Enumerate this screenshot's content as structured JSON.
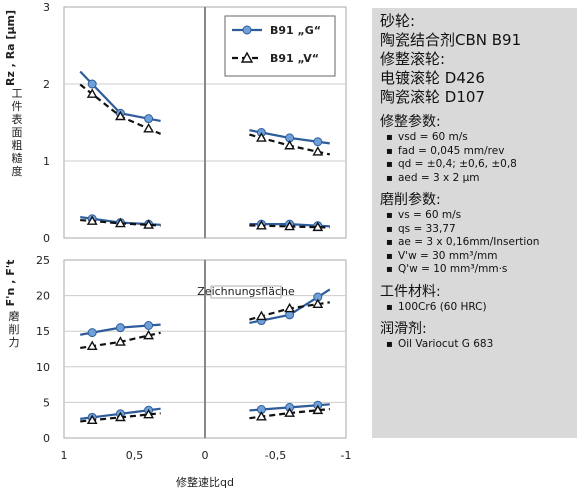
{
  "chart_data": [
    {
      "type": "line",
      "panel": "top",
      "ylabel": "Rz , Ra [µm]",
      "ylabel_cn": "工件表面粗糙度",
      "ylim": [
        0,
        3
      ],
      "yticks": [
        0,
        1,
        2,
        3
      ],
      "xlim": [
        1,
        -1
      ],
      "series": [
        {
          "name": "B91 „G“",
          "style": "solid",
          "marker": "circle",
          "points": [
            [
              0.8,
              2.0
            ],
            [
              0.6,
              1.62
            ],
            [
              0.4,
              1.55
            ]
          ]
        },
        {
          "name": "B91 „V“",
          "style": "dashed",
          "marker": "triangle",
          "points": [
            [
              0.8,
              1.87
            ],
            [
              0.6,
              1.58
            ],
            [
              0.4,
              1.42
            ]
          ]
        },
        {
          "style": "solid",
          "marker": "circle",
          "points": [
            [
              -0.4,
              1.37
            ],
            [
              -0.6,
              1.3
            ],
            [
              -0.8,
              1.25
            ]
          ]
        },
        {
          "style": "dashed",
          "marker": "triangle",
          "points": [
            [
              -0.4,
              1.3
            ],
            [
              -0.6,
              1.2
            ],
            [
              -0.8,
              1.12
            ]
          ]
        },
        {
          "style": "solid",
          "marker": "circle",
          "points": [
            [
              0.8,
              0.25
            ],
            [
              0.6,
              0.2
            ],
            [
              0.4,
              0.18
            ]
          ]
        },
        {
          "style": "dashed",
          "marker": "triangle",
          "points": [
            [
              0.8,
              0.22
            ],
            [
              0.6,
              0.19
            ],
            [
              0.4,
              0.17
            ]
          ]
        },
        {
          "style": "solid",
          "marker": "circle",
          "points": [
            [
              -0.4,
              0.18
            ],
            [
              -0.6,
              0.18
            ],
            [
              -0.8,
              0.16
            ]
          ]
        },
        {
          "style": "dashed",
          "marker": "triangle",
          "points": [
            [
              -0.4,
              0.16
            ],
            [
              -0.6,
              0.15
            ],
            [
              -0.8,
              0.14
            ]
          ]
        }
      ]
    },
    {
      "type": "line",
      "panel": "bottom",
      "ylabel": "F'n , F't",
      "ylabel_cn": "磨削力",
      "ylim": [
        0,
        25
      ],
      "yticks": [
        0,
        5,
        10,
        15,
        20,
        25
      ],
      "xlim": [
        1,
        -1
      ],
      "xticks": [
        1,
        0.5,
        0,
        -0.5,
        -1
      ],
      "xtick_labels": [
        "1",
        "0,5",
        "0",
        "-0,5",
        "-1"
      ],
      "xlabel": "修整速比qd",
      "annotation": "Zeichnungsfläche",
      "series": [
        {
          "style": "solid",
          "marker": "circle",
          "points": [
            [
              0.8,
              14.8
            ],
            [
              0.6,
              15.5
            ],
            [
              0.4,
              15.8
            ]
          ]
        },
        {
          "style": "dashed",
          "marker": "triangle",
          "points": [
            [
              0.8,
              12.9
            ],
            [
              0.6,
              13.5
            ],
            [
              0.4,
              14.4
            ]
          ]
        },
        {
          "style": "solid",
          "marker": "circle",
          "points": [
            [
              -0.4,
              16.5
            ],
            [
              -0.6,
              17.3
            ],
            [
              -0.8,
              19.8
            ]
          ]
        },
        {
          "style": "dashed",
          "marker": "triangle",
          "points": [
            [
              -0.4,
              17.1
            ],
            [
              -0.6,
              18.2
            ],
            [
              -0.8,
              18.8
            ]
          ]
        },
        {
          "style": "solid",
          "marker": "circle",
          "points": [
            [
              0.8,
              2.9
            ],
            [
              0.6,
              3.4
            ],
            [
              0.4,
              3.9
            ]
          ]
        },
        {
          "style": "dashed",
          "marker": "triangle",
          "points": [
            [
              0.8,
              2.5
            ],
            [
              0.6,
              2.9
            ],
            [
              0.4,
              3.3
            ]
          ]
        },
        {
          "style": "solid",
          "marker": "circle",
          "points": [
            [
              -0.4,
              4.0
            ],
            [
              -0.6,
              4.3
            ],
            [
              -0.8,
              4.6
            ]
          ]
        },
        {
          "style": "dashed",
          "marker": "triangle",
          "points": [
            [
              -0.4,
              3.0
            ],
            [
              -0.6,
              3.5
            ],
            [
              -0.8,
              3.9
            ]
          ]
        }
      ]
    }
  ],
  "colors": {
    "solid_series": "#2e5c9a",
    "marker_fill": "#6fa0d8",
    "dashed_series": "#111111",
    "panel_bg": "#d9d9d9",
    "grid": "#cccccc"
  },
  "legend": {
    "g_label": "B91 „G“",
    "v_label": "B91 „V“"
  },
  "params": {
    "grinding_wheel_title": "砂轮:",
    "grinding_wheel_value": "陶瓷结合剂CBN B91",
    "dresser_title": "修整滚轮:",
    "dresser_value1": "电镀滚轮 D426",
    "dresser_value2": "陶瓷滚轮 D107",
    "dressing_title": "修整参数:",
    "dressing_items": [
      "vsd = 60 m/s",
      "fad = 0,045 mm/rev",
      "qd = ±0,4; ±0,6, ±0,8",
      "aed = 3 x 2 µm"
    ],
    "grinding_title": "磨削参数:",
    "grinding_items": [
      "vs = 60 m/s",
      "qs = 33,77",
      "ae = 3 x 0,16mm/Insertion",
      "V'w = 30 mm³/mm",
      "Q'w = 10 mm³/mm·s"
    ],
    "material_title": "工件材料:",
    "material_items": [
      "100Cr6 (60 HRC)"
    ],
    "lubricant_title": "润滑剂:",
    "lubricant_items": [
      "Oil Variocut G 683"
    ]
  }
}
